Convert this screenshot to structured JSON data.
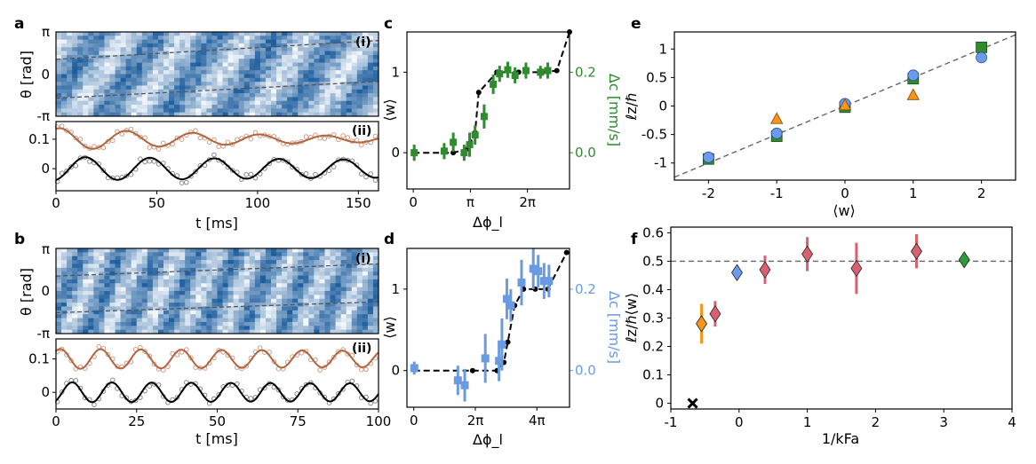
{
  "panels": {
    "a": {
      "letter": "a"
    },
    "b": {
      "letter": "b"
    },
    "c": {
      "letter": "c"
    },
    "d": {
      "letter": "d"
    },
    "e": {
      "letter": "e"
    },
    "f": {
      "letter": "f"
    }
  },
  "colors": {
    "heat_light": "#f3f7fc",
    "heat_dark": "#1f5f9e",
    "orange_trace": "#b3653f",
    "black_trace": "#000000",
    "green": "#2e8b2e",
    "lightblue": "#6a9be0",
    "pink": "#d9606e",
    "orange": "#f7941d",
    "circle_blue": "#6b9bef",
    "diamond_blue": "#6b9bef",
    "diamond_green": "#2e9b3a"
  },
  "chart_data": [
    {
      "id": "a_i",
      "type": "heatmap",
      "sublabel": "(i)",
      "ylabel": "θ [rad]",
      "yticks": [
        "π",
        "0",
        "-π"
      ],
      "ylim": [
        -3.1416,
        3.1416
      ],
      "xlim": [
        0,
        160
      ],
      "guide_lines": [
        {
          "t": [
            0,
            160
          ],
          "theta": [
            1.1,
            2.5
          ]
        },
        {
          "t": [
            0,
            160
          ],
          "theta": [
            -1.8,
            -0.55
          ]
        }
      ],
      "stripe_period_ms": 30
    },
    {
      "id": "a_ii",
      "type": "line",
      "sublabel": "(ii)",
      "xlabel": "t [ms]",
      "xlim": [
        0,
        160
      ],
      "xticks": [
        0,
        50,
        100,
        150
      ],
      "ylim": [
        -0.075,
        0.16
      ],
      "yticks": [
        0,
        0.1
      ],
      "series": [
        {
          "color_key": "orange_trace",
          "offset": 0.1,
          "amp": 0.038,
          "period_ms": 33,
          "decay_ms": 120,
          "phase": 1.2
        },
        {
          "color_key": "black_trace",
          "offset": 0.0,
          "amp": 0.04,
          "period_ms": 32,
          "decay_ms": 600,
          "phase": -1.3
        }
      ]
    },
    {
      "id": "b_i",
      "type": "heatmap",
      "sublabel": "(i)",
      "ylabel": "θ [rad]",
      "yticks": [
        "π",
        "0",
        "-π"
      ],
      "ylim": [
        -3.1416,
        3.1416
      ],
      "xlim": [
        0,
        100
      ],
      "guide_lines": [
        {
          "t": [
            0,
            100
          ],
          "theta": [
            1.1,
            2.0
          ]
        },
        {
          "t": [
            0,
            100
          ],
          "theta": [
            -1.6,
            -0.8
          ]
        }
      ],
      "stripe_period_ms": 12
    },
    {
      "id": "b_ii",
      "type": "line",
      "sublabel": "(ii)",
      "xlabel": "t [ms]",
      "xlim": [
        0,
        100
      ],
      "xticks": [
        0,
        25,
        50,
        75,
        100
      ],
      "ylim": [
        -0.05,
        0.16
      ],
      "yticks": [
        0,
        0.1
      ],
      "series": [
        {
          "color_key": "orange_trace",
          "offset": 0.1,
          "amp": 0.03,
          "period_ms": 12.5,
          "decay_ms": 500,
          "phase": 0.9
        },
        {
          "color_key": "black_trace",
          "offset": 0.0,
          "amp": 0.03,
          "period_ms": 12.3,
          "decay_ms": 900,
          "phase": -1.0
        }
      ]
    },
    {
      "id": "c",
      "type": "scatter",
      "xlabel": "Δϕ_l",
      "ylabel": "⟨w⟩",
      "ylabel_right": "Δc [mm/s]",
      "xlim": [
        -0.35,
        8.6
      ],
      "ylim": [
        -0.45,
        1.5
      ],
      "xticks": [
        {
          "v": 0,
          "label": "0"
        },
        {
          "v": 3.1416,
          "label": "π"
        },
        {
          "v": 6.2832,
          "label": "2π"
        }
      ],
      "yticks": [
        0,
        1
      ],
      "right_yticks": [
        {
          "v": 0,
          "label": "0.0"
        },
        {
          "v": 1,
          "label": "0.2"
        }
      ],
      "winding": {
        "x": [
          0,
          1.2,
          2.2,
          3.0,
          3.4,
          3.6,
          4.6,
          5.8,
          7.1,
          7.9,
          8.6
        ],
        "y": [
          0,
          0,
          0,
          0.05,
          0.25,
          0.75,
          1.0,
          1.0,
          1.0,
          1.02,
          1.5
        ]
      },
      "velocity_points": [
        {
          "x": 0.05,
          "y": 0.0,
          "err": 0.1
        },
        {
          "x": 1.7,
          "y": 0.02,
          "err": 0.1
        },
        {
          "x": 2.2,
          "y": 0.13,
          "err": 0.12
        },
        {
          "x": 2.8,
          "y": 0.0,
          "err": 0.1
        },
        {
          "x": 3.1,
          "y": 0.1,
          "err": 0.15
        },
        {
          "x": 3.4,
          "y": 0.22,
          "err": 0.12
        },
        {
          "x": 3.9,
          "y": 0.45,
          "err": 0.15
        },
        {
          "x": 4.4,
          "y": 0.85,
          "err": 0.12
        },
        {
          "x": 4.75,
          "y": 0.98,
          "err": 0.1
        },
        {
          "x": 5.2,
          "y": 1.03,
          "err": 0.1
        },
        {
          "x": 5.6,
          "y": 0.96,
          "err": 0.1
        },
        {
          "x": 6.2,
          "y": 1.02,
          "err": 0.1
        },
        {
          "x": 7.0,
          "y": 1.0,
          "err": 0.08
        },
        {
          "x": 7.4,
          "y": 1.02,
          "err": 0.1
        }
      ],
      "velocity_color_key": "green"
    },
    {
      "id": "d",
      "type": "scatter",
      "xlabel": "Δϕ_l",
      "ylabel": "⟨w⟩",
      "ylabel_right": "Δc [mm/s]",
      "xlim": [
        -0.7,
        15.9
      ],
      "ylim": [
        -0.45,
        1.5
      ],
      "xticks": [
        {
          "v": 0,
          "label": "0"
        },
        {
          "v": 6.2832,
          "label": "2π"
        },
        {
          "v": 12.566,
          "label": "4π"
        }
      ],
      "yticks": [
        0,
        1
      ],
      "right_yticks": [
        {
          "v": 0,
          "label": "0.0"
        },
        {
          "v": 1,
          "label": "0.2"
        }
      ],
      "winding": {
        "x": [
          0,
          3,
          6,
          8.5,
          9.2,
          9.6,
          10.3,
          11.2,
          12.4,
          13.7,
          15.6
        ],
        "y": [
          0,
          0,
          0,
          0,
          0.1,
          0.35,
          0.8,
          1.0,
          1.0,
          1.0,
          1.45
        ]
      },
      "velocity_points": [
        {
          "x": 0.05,
          "y": 0.03,
          "err": 0.08
        },
        {
          "x": 4.5,
          "y": -0.12,
          "err": 0.18
        },
        {
          "x": 5.2,
          "y": -0.18,
          "err": 0.2
        },
        {
          "x": 7.3,
          "y": 0.15,
          "err": 0.3
        },
        {
          "x": 8.7,
          "y": 0.12,
          "err": 0.25
        },
        {
          "x": 9.0,
          "y": 0.32,
          "err": 0.32
        },
        {
          "x": 9.5,
          "y": 0.88,
          "err": 0.25
        },
        {
          "x": 9.9,
          "y": 0.8,
          "err": 0.2
        },
        {
          "x": 11.0,
          "y": 1.08,
          "err": 0.28
        },
        {
          "x": 12.2,
          "y": 1.25,
          "err": 0.25
        },
        {
          "x": 12.7,
          "y": 1.22,
          "err": 0.2
        },
        {
          "x": 13.3,
          "y": 1.1,
          "err": 0.22
        },
        {
          "x": 13.8,
          "y": 1.1,
          "err": 0.2
        }
      ],
      "velocity_color_key": "lightblue"
    },
    {
      "id": "e",
      "type": "scatter",
      "xlabel": "⟨w⟩",
      "ylabel": "ℓz/ℏ",
      "xlim": [
        -2.5,
        2.5
      ],
      "ylim": [
        -1.3,
        1.3
      ],
      "xticks": [
        -2,
        -1,
        0,
        1,
        2
      ],
      "yticks": [
        {
          "v": -1,
          "label": "-1"
        },
        {
          "v": -0.5,
          "label": "-0.5"
        },
        {
          "v": 0,
          "label": "0"
        },
        {
          "v": 0.5,
          "label": "0.5"
        },
        {
          "v": 1,
          "label": "1"
        }
      ],
      "reference_line": {
        "x": [
          -2.5,
          2.5
        ],
        "y": [
          -1.25,
          1.25
        ]
      },
      "points": [
        {
          "marker": "square",
          "color_key": "green",
          "x": -2,
          "y": -0.93
        },
        {
          "marker": "square",
          "color_key": "green",
          "x": -1,
          "y": -0.53
        },
        {
          "marker": "square",
          "color_key": "green",
          "x": 0,
          "y": -0.02
        },
        {
          "marker": "square",
          "color_key": "green",
          "x": 1,
          "y": 0.48
        },
        {
          "marker": "square",
          "color_key": "green",
          "x": 2,
          "y": 1.03
        },
        {
          "marker": "circle",
          "color_key": "circle_blue",
          "x": -2,
          "y": -0.9
        },
        {
          "marker": "circle",
          "color_key": "circle_blue",
          "x": -1,
          "y": -0.48
        },
        {
          "marker": "circle",
          "color_key": "circle_blue",
          "x": 0,
          "y": 0.04
        },
        {
          "marker": "circle",
          "color_key": "circle_blue",
          "x": 1,
          "y": 0.54
        },
        {
          "marker": "circle",
          "color_key": "circle_blue",
          "x": 2,
          "y": 0.85
        },
        {
          "marker": "triangle",
          "color_key": "orange",
          "x": -1,
          "y": -0.23
        },
        {
          "marker": "triangle",
          "color_key": "orange",
          "x": 0,
          "y": 0.01
        },
        {
          "marker": "triangle",
          "color_key": "orange",
          "x": 1,
          "y": 0.19
        }
      ]
    },
    {
      "id": "f",
      "type": "scatter",
      "xlabel": "1/kFa",
      "ylabel": "ℓz/ℏ⟨w⟩",
      "xlim": [
        -1,
        4
      ],
      "ylim": [
        -0.02,
        0.62
      ],
      "xticks": [
        -1,
        0,
        1,
        2,
        3,
        4
      ],
      "yticks": [
        {
          "v": 0,
          "label": "0"
        },
        {
          "v": 0.1,
          "label": "0.1"
        },
        {
          "v": 0.2,
          "label": "0.2"
        },
        {
          "v": 0.3,
          "label": "0.3"
        },
        {
          "v": 0.4,
          "label": "0.4"
        },
        {
          "v": 0.5,
          "label": "0.5"
        },
        {
          "v": 0.6,
          "label": "0.6"
        }
      ],
      "reference_line": {
        "x": [
          -1,
          4
        ],
        "y": [
          0.5,
          0.5
        ]
      },
      "points": [
        {
          "marker": "diamond",
          "color_key": "orange",
          "x": -0.55,
          "y": 0.28,
          "err": 0.07
        },
        {
          "marker": "diamond",
          "color_key": "pink",
          "x": -0.35,
          "y": 0.315,
          "err": 0.045
        },
        {
          "marker": "diamond",
          "color_key": "diamond_blue",
          "x": -0.03,
          "y": 0.46,
          "err": 0.02
        },
        {
          "marker": "diamond",
          "color_key": "pink",
          "x": 0.38,
          "y": 0.47,
          "err": 0.05
        },
        {
          "marker": "diamond",
          "color_key": "pink",
          "x": 1.0,
          "y": 0.525,
          "err": 0.06
        },
        {
          "marker": "diamond",
          "color_key": "pink",
          "x": 1.72,
          "y": 0.475,
          "err": 0.09
        },
        {
          "marker": "diamond",
          "color_key": "pink",
          "x": 2.6,
          "y": 0.535,
          "err": 0.06
        },
        {
          "marker": "diamond",
          "color_key": "diamond_green",
          "x": 3.3,
          "y": 0.505,
          "err": 0.01
        },
        {
          "marker": "cross",
          "color_key": "black_trace",
          "x": -0.68,
          "y": 0.0
        }
      ]
    }
  ]
}
